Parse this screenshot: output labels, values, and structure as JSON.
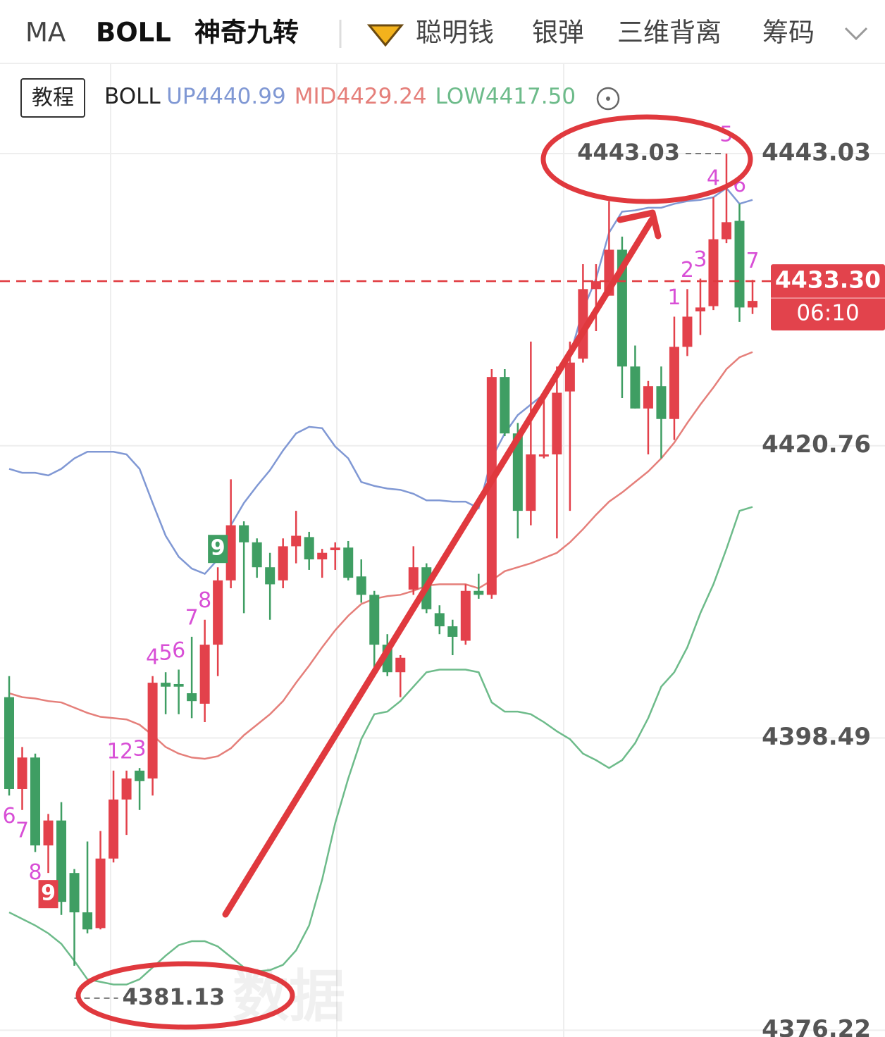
{
  "header": {
    "tabs": [
      "MA",
      "BOLL",
      "神奇九转",
      "聪明钱",
      "银弹",
      "三维背离",
      "筹码"
    ]
  },
  "chart_data": {
    "type": "candlestick",
    "tutorial": "教程",
    "indicator": "BOLL",
    "legend": [
      "UP4440.99",
      "MID4429.24",
      "LOW4417.50"
    ],
    "up_color": "#e3414b",
    "down_color": "#3f9e63",
    "ylim": [
      4375.7,
      4449.9
    ],
    "yticks": [
      4443.03,
      4420.76,
      4398.49,
      4376.22
    ],
    "grid": true,
    "open": [
      4401.6,
      4394.6,
      4397.0,
      4390.3,
      4392.2,
      4388.2,
      4385.2,
      4384.0,
      4389.3,
      4393.8,
      4396.0,
      4395.4,
      4402.7,
      4402.6,
      4401.9,
      4401.1,
      4405.6,
      4410.5,
      4414.7,
      4413.4,
      4411.5,
      4410.5,
      4413.1,
      4413.8,
      4412.1,
      4412.8,
      4413.0,
      4410.8,
      4409.4,
      4405.6,
      4403.5,
      4409.8,
      4411.5,
      4408.0,
      4407.0,
      4405.9,
      4409.7,
      4409.4,
      4426.0,
      4421.7,
      4415.8,
      4420.0,
      4420.1,
      4424.9,
      4427.4,
      4432.7,
      4432.2,
      4435.7,
      4426.8,
      4423.6,
      4425.3,
      4422.8,
      4428.3,
      4431.0,
      4431.4,
      4436.5,
      4437.9,
      4431.3
    ],
    "high": [
      4403.2,
      4397.8,
      4397.3,
      4392.7,
      4393.6,
      4388.5,
      4390.6,
      4391.4,
      4396.0,
      4396.0,
      4396.2,
      4403.2,
      4403.5,
      4403.7,
      4406.2,
      4407.5,
      4411.5,
      4418.2,
      4415.0,
      4413.7,
      4412.6,
      4413.7,
      4415.8,
      4414.2,
      4412.9,
      4413.4,
      4413.5,
      4412.1,
      4409.7,
      4406.4,
      4404.8,
      4413.1,
      4411.8,
      4408.6,
      4407.5,
      4410.2,
      4411.0,
      4426.6,
      4426.6,
      4422.5,
      4428.7,
      4424.7,
      4426.8,
      4428.7,
      4434.6,
      4434.6,
      4439.4,
      4436.7,
      4428.4,
      4425.7,
      4426.8,
      4430.6,
      4432.7,
      4433.5,
      4439.7,
      4443.03,
      4439.2,
      4433.4
    ],
    "low": [
      4394.1,
      4393.0,
      4389.8,
      4388.2,
      4385.0,
      4381.13,
      4383.6,
      4383.9,
      4389.0,
      4391.1,
      4393.0,
      4394.1,
      4400.3,
      4400.3,
      4400.0,
      4399.7,
      4403.2,
      4409.9,
      4408.0,
      4410.7,
      4407.5,
      4409.9,
      4411.8,
      4411.3,
      4410.7,
      4411.3,
      4410.5,
      4408.8,
      4403.7,
      4403.2,
      4401.6,
      4409.4,
      4408.0,
      4406.4,
      4404.8,
      4405.6,
      4409.1,
      4409.1,
      4421.5,
      4413.7,
      4414.7,
      4419.8,
      4413.7,
      4415.8,
      4427.1,
      4429.5,
      4432.2,
      4424.4,
      4423.6,
      4420.1,
      4419.8,
      4421.2,
      4427.6,
      4429.2,
      4431.1,
      4436.2,
      4430.2,
      4430.8
    ],
    "close": [
      4394.6,
      4397.0,
      4390.3,
      4392.2,
      4386.0,
      4385.2,
      4383.9,
      4389.3,
      4393.8,
      4395.4,
      4395.2,
      4402.7,
      4402.4,
      4402.4,
      4401.3,
      4405.6,
      4410.5,
      4414.7,
      4413.4,
      4411.5,
      4410.2,
      4413.1,
      4413.9,
      4412.1,
      4412.6,
      4413.0,
      4410.7,
      4409.4,
      4405.6,
      4403.5,
      4404.6,
      4411.5,
      4408.3,
      4407.0,
      4406.2,
      4409.7,
      4409.4,
      4426.0,
      4421.7,
      4415.8,
      4420.1,
      4420.1,
      4424.8,
      4427.1,
      4432.7,
      4433.3,
      4435.7,
      4426.8,
      4423.6,
      4425.3,
      4422.8,
      4428.3,
      4430.6,
      4431.3,
      4436.5,
      4437.8,
      4431.3,
      4431.8
    ],
    "bands": [
      {
        "color": "#8098d4",
        "values": [
          4419.0,
          4418.7,
          4418.7,
          4418.5,
          4419.0,
          4419.8,
          4420.3,
          4420.3,
          4420.3,
          4420.1,
          4419.0,
          4416.4,
          4413.9,
          4412.3,
          4411.4,
          4411.0,
          4412.1,
          4414.7,
          4416.4,
          4417.7,
          4418.9,
          4420.4,
          4421.7,
          4422.2,
          4422.1,
          4420.7,
          4419.8,
          4418.0,
          4417.7,
          4417.5,
          4417.4,
          4417.1,
          4416.6,
          4416.6,
          4416.5,
          4416.5,
          4416.0,
          4419.8,
          4421.7,
          4423.1,
          4423.9,
          4424.7,
          4426.3,
          4427.6,
          4431.1,
          4433.5,
          4437.0,
          4438.6,
          4438.7,
          4438.9,
          4438.9,
          4439.2,
          4439.4,
          4439.5,
          4439.7,
          4440.4,
          4439.2,
          4439.5
        ]
      },
      {
        "color": "#e57f7a",
        "values": [
          4401.9,
          4401.6,
          4401.5,
          4401.3,
          4401.2,
          4400.8,
          4400.4,
          4400.1,
          4400.0,
          4399.9,
          4399.5,
          4398.7,
          4397.8,
          4397.3,
          4397.0,
          4396.9,
          4397.1,
          4397.7,
          4398.7,
          4399.5,
          4400.3,
          4401.3,
          4402.7,
          4404.0,
          4405.4,
          4406.7,
          4407.8,
          4408.7,
          4409.1,
          4409.3,
          4409.4,
          4409.7,
          4410.1,
          4410.2,
          4410.2,
          4410.2,
          4409.9,
          4410.5,
          4411.2,
          4411.5,
          4411.8,
          4412.2,
          4412.6,
          4413.4,
          4414.4,
          4415.5,
          4416.5,
          4417.2,
          4418.0,
          4418.8,
          4419.8,
          4421.0,
          4422.5,
          4423.9,
          4425.2,
          4426.6,
          4427.5,
          4427.9
        ]
      },
      {
        "color": "#6dbb8a",
        "values": [
          4385.2,
          4384.7,
          4384.2,
          4383.6,
          4382.8,
          4381.5,
          4380.1,
          4379.9,
          4379.7,
          4379.7,
          4380.1,
          4381.0,
          4381.9,
          4382.7,
          4383.0,
          4383.0,
          4382.6,
          4381.8,
          4381.0,
          4380.7,
          4380.8,
          4381.2,
          4382.3,
          4384.2,
          4387.7,
          4392.0,
          4395.4,
          4398.4,
          4400.3,
          4400.5,
          4401.3,
          4402.4,
          4403.5,
          4403.7,
          4403.7,
          4403.7,
          4403.5,
          4401.2,
          4400.5,
          4400.5,
          4400.3,
          4399.7,
          4399.0,
          4398.4,
          4397.3,
          4396.8,
          4396.2,
          4396.8,
          4398.1,
          4400.0,
          4402.4,
          4403.5,
          4405.4,
          4408.0,
          4410.2,
          4412.9,
          4415.8,
          4416.1
        ]
      }
    ],
    "td_buy": [
      {
        "label": "6",
        "candle": 0
      },
      {
        "label": "7",
        "candle": 1
      },
      {
        "label": "8",
        "candle": 2
      },
      {
        "label": "9",
        "candle": 3
      }
    ],
    "td_sell": [
      {
        "label": "1",
        "candle": 8
      },
      {
        "label": "2",
        "candle": 9
      },
      {
        "label": "3",
        "candle": 10
      },
      {
        "label": "4",
        "candle": 11
      },
      {
        "label": "5",
        "candle": 12
      },
      {
        "label": "6",
        "candle": 13
      },
      {
        "label": "7",
        "candle": 14
      },
      {
        "label": "8",
        "candle": 15
      },
      {
        "label": "9",
        "candle": 16
      },
      {
        "label": "1",
        "candle": 51
      },
      {
        "label": "2",
        "candle": 52
      },
      {
        "label": "3",
        "candle": 53
      },
      {
        "label": "4",
        "candle": 54
      },
      {
        "label": "5",
        "candle": 55
      },
      {
        "label": "6",
        "candle": 56
      },
      {
        "label": "7",
        "candle": 57
      }
    ],
    "max_marker": {
      "value": 4443.03,
      "candle": 55
    },
    "min_marker": {
      "value": 4381.13,
      "candle": 5
    },
    "current_price": {
      "value": 4433.3,
      "label": "4433.30"
    },
    "countdown": "06:10",
    "watermark": "数据"
  }
}
